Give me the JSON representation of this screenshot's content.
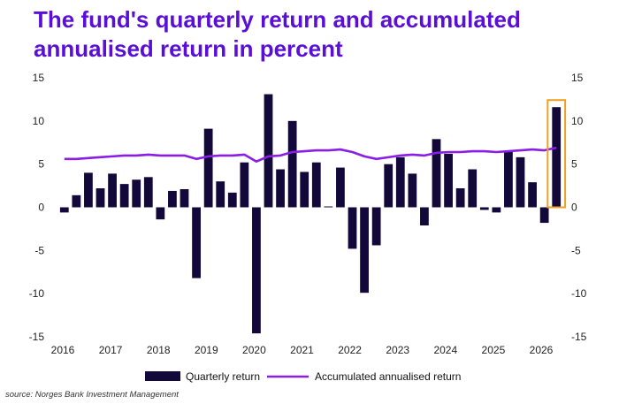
{
  "title": "The fund's quarterly return and accumulated annualised return in percent",
  "source": "source: Norges Bank Investment Management",
  "colors": {
    "title": "#5a0fd6",
    "bar": "#12093a",
    "line": "#8a1de6",
    "highlight": "#f0a020"
  },
  "chart_data": {
    "type": "bar",
    "ylim": [
      -15,
      15
    ],
    "yticks": [
      15,
      10,
      5,
      0,
      -5,
      -10,
      -15
    ],
    "x_tick_labels": [
      "2016",
      "2017",
      "2018",
      "2019",
      "2020",
      "2021",
      "2022",
      "2023",
      "2024",
      "2025",
      "2026"
    ],
    "legend": {
      "position": "bottom-center"
    },
    "grid": false,
    "series": [
      {
        "name": "Quarterly return",
        "type": "bar",
        "values": [
          -0.6,
          1.4,
          4.0,
          2.2,
          3.9,
          2.7,
          3.2,
          3.5,
          -1.4,
          1.9,
          2.1,
          -8.2,
          9.1,
          3.0,
          1.7,
          5.2,
          -14.6,
          13.1,
          4.4,
          10.0,
          4.1,
          5.2,
          0.1,
          4.6,
          -4.8,
          -9.9,
          -4.4,
          5.0,
          5.8,
          3.9,
          -2.1,
          7.9,
          6.2,
          2.2,
          4.4,
          -0.3,
          -0.6,
          6.4,
          5.8,
          2.9,
          -1.8,
          11.6
        ]
      },
      {
        "name": "Accumulated annualised return",
        "type": "line",
        "values": [
          5.6,
          5.6,
          5.7,
          5.8,
          5.9,
          6.0,
          6.0,
          6.1,
          6.0,
          6.0,
          6.0,
          5.6,
          5.9,
          6.0,
          6.0,
          6.1,
          5.3,
          5.9,
          6.0,
          6.4,
          6.5,
          6.6,
          6.6,
          6.7,
          6.4,
          5.9,
          5.6,
          5.8,
          6.0,
          6.1,
          6.0,
          6.3,
          6.4,
          6.4,
          6.5,
          6.5,
          6.4,
          6.5,
          6.6,
          6.7,
          6.6,
          6.9
        ]
      }
    ],
    "highlight_index": 41
  }
}
